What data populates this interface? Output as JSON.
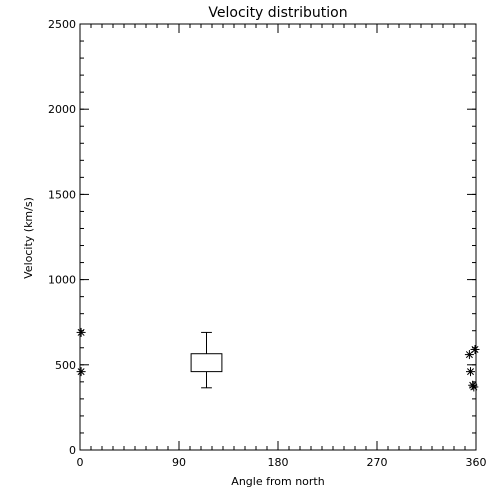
{
  "chart_data": {
    "type": "scatter",
    "title": "Velocity distribution",
    "xlabel": "Angle from north",
    "ylabel": "Velocity (km/s)",
    "xlim": [
      0,
      360
    ],
    "ylim": [
      0,
      2500
    ],
    "xticks": [
      "0",
      "90",
      "180",
      "270",
      "360"
    ],
    "xtick_values": [
      0,
      90,
      180,
      270,
      360
    ],
    "yticks": [
      "0",
      "500",
      "1000",
      "1500",
      "2000",
      "2500"
    ],
    "ytick_values": [
      0,
      500,
      1000,
      1500,
      2000,
      2500
    ],
    "x_minor_step": 10,
    "y_minor_step": 100,
    "grid": false,
    "points": [
      {
        "x": 1,
        "y": 690
      },
      {
        "x": 1,
        "y": 460
      },
      {
        "x": 354,
        "y": 560
      },
      {
        "x": 355,
        "y": 460
      },
      {
        "x": 357,
        "y": 380
      },
      {
        "x": 358,
        "y": 370
      },
      {
        "x": 361,
        "y": 590
      }
    ],
    "box": {
      "x_center": 115,
      "x_width": 28,
      "whisker_low": 365,
      "q1": 460,
      "q3": 565,
      "whisker_high": 690
    }
  }
}
